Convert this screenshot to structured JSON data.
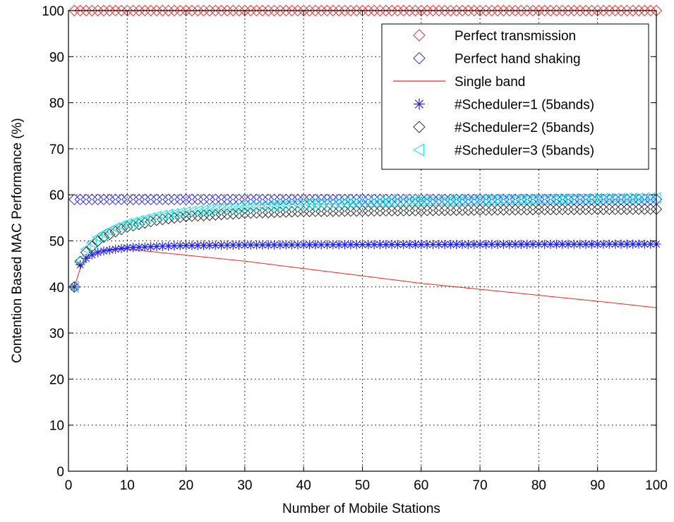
{
  "chart_data": {
    "type": "line",
    "title": "",
    "xlabel": "Number of Mobile Stations",
    "ylabel": "Contention Based MAC Performance (%)",
    "xlim": [
      0,
      100
    ],
    "ylim": [
      0,
      100
    ],
    "xticks": [
      0,
      10,
      20,
      30,
      40,
      50,
      60,
      70,
      80,
      90,
      100
    ],
    "yticks": [
      0,
      10,
      20,
      30,
      40,
      50,
      60,
      70,
      80,
      90,
      100
    ],
    "grid": true,
    "grid_style": "dotted",
    "legend_position": "top-right",
    "x": [
      1,
      100
    ],
    "series": [
      {
        "name": "Perfect transmission",
        "color": "#ff3030",
        "marker": "diamond",
        "line": false,
        "points": [
          [
            1,
            100
          ],
          [
            100,
            100
          ]
        ]
      },
      {
        "name": "Perfect hand shaking",
        "color": "#3030ff",
        "marker": "diamond",
        "line": false,
        "points": [
          [
            1,
            59
          ],
          [
            100,
            59
          ]
        ]
      },
      {
        "name": "Single band",
        "color": "#ff2020",
        "marker": "none",
        "line": true,
        "points": [
          [
            1,
            40
          ],
          [
            2,
            44
          ],
          [
            3,
            46
          ],
          [
            4,
            47
          ],
          [
            5,
            47.5
          ],
          [
            6,
            48
          ],
          [
            8,
            48.3
          ],
          [
            10,
            48.2
          ],
          [
            20,
            46.9
          ],
          [
            30,
            45.6
          ],
          [
            40,
            44
          ],
          [
            50,
            42.4
          ],
          [
            60,
            40.8
          ],
          [
            70,
            39.5
          ],
          [
            80,
            38.2
          ],
          [
            90,
            36.9
          ],
          [
            100,
            35.5
          ]
        ]
      },
      {
        "name": "#Scheduler=1 (5bands)",
        "color": "#2020ff",
        "marker": "star",
        "line": false,
        "points": [
          [
            1,
            40
          ],
          [
            2,
            44.8
          ],
          [
            3,
            46.2
          ],
          [
            4,
            47
          ],
          [
            5,
            47.5
          ],
          [
            6,
            47.8
          ],
          [
            8,
            48.2
          ],
          [
            10,
            48.5
          ],
          [
            15,
            48.8
          ],
          [
            20,
            49
          ],
          [
            30,
            49.1
          ],
          [
            50,
            49.2
          ],
          [
            100,
            49.3
          ]
        ]
      },
      {
        "name": "#Scheduler=2 (5bands)",
        "color": "#303030",
        "marker": "diamond",
        "line": false,
        "points": [
          [
            1,
            40
          ],
          [
            2,
            45.5
          ],
          [
            3,
            47.5
          ],
          [
            4,
            48.8
          ],
          [
            5,
            50
          ],
          [
            6,
            50.8
          ],
          [
            8,
            52
          ],
          [
            10,
            53
          ],
          [
            15,
            54.5
          ],
          [
            20,
            55.3
          ],
          [
            30,
            56
          ],
          [
            40,
            56.4
          ],
          [
            60,
            56.6
          ],
          [
            80,
            56.8
          ],
          [
            100,
            56.9
          ]
        ]
      },
      {
        "name": "#Scheduler=3 (5bands)",
        "color": "#00e5e5",
        "marker": "triangle-left",
        "line": false,
        "points": [
          [
            1,
            40
          ],
          [
            2,
            45.8
          ],
          [
            3,
            48.2
          ],
          [
            4,
            49.6
          ],
          [
            5,
            50.8
          ],
          [
            6,
            51.6
          ],
          [
            8,
            52.8
          ],
          [
            10,
            53.7
          ],
          [
            15,
            55.3
          ],
          [
            20,
            56.3
          ],
          [
            30,
            57.4
          ],
          [
            40,
            58
          ],
          [
            60,
            58.7
          ],
          [
            80,
            59
          ],
          [
            100,
            59.3
          ]
        ]
      }
    ]
  }
}
